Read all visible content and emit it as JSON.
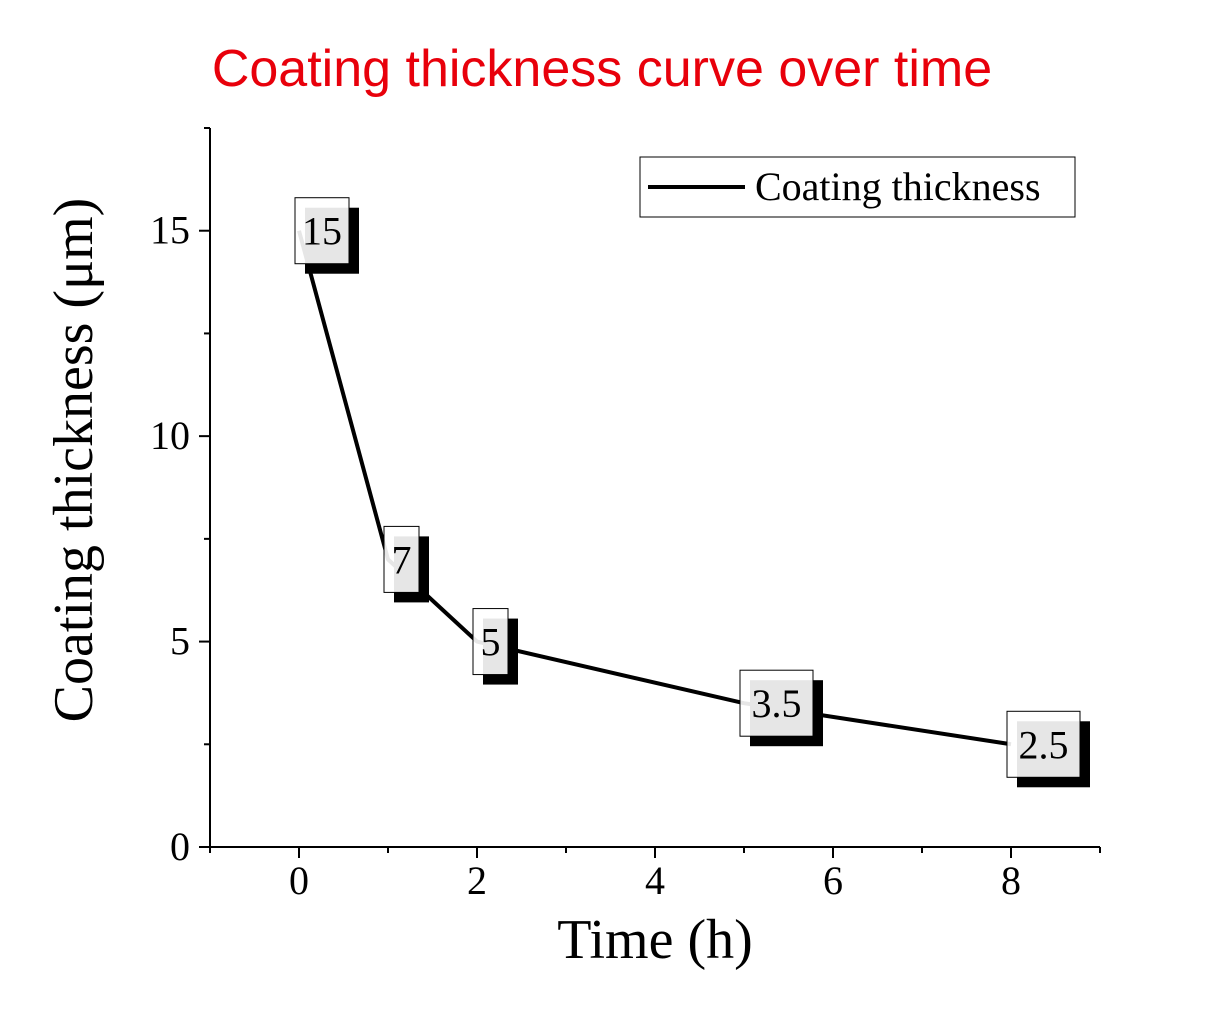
{
  "chart_data": {
    "type": "line",
    "title": "Coating thickness curve over time",
    "xlabel": "Time (h)",
    "ylabel": "Coating thickness (μm)",
    "x": [
      0,
      1,
      1.5,
      2,
      5,
      8
    ],
    "series": [
      {
        "name": "Coating thickness",
        "values": [
          15,
          7,
          6,
          5,
          3.5,
          2.5
        ],
        "color": "#000000"
      }
    ],
    "data_labels": [
      {
        "x": 0,
        "y": 15,
        "text": "15"
      },
      {
        "x": 1,
        "y": 7,
        "text": "7"
      },
      {
        "x": 2,
        "y": 5,
        "text": "5"
      },
      {
        "x": 5,
        "y": 3.5,
        "text": "3.5"
      },
      {
        "x": 8,
        "y": 2.5,
        "text": "2.5"
      }
    ],
    "xlim": [
      -1,
      9
    ],
    "ylim": [
      0,
      17.5
    ],
    "xticks": [
      0,
      2,
      4,
      6,
      8
    ],
    "yticks": [
      0,
      5,
      10,
      15
    ],
    "xtick_labels": [
      "0",
      "2",
      "4",
      "6",
      "8"
    ],
    "ytick_labels": [
      "0",
      "5",
      "10",
      "15"
    ],
    "grid": false,
    "legend": "top-right",
    "title_color": "#e8000b"
  }
}
